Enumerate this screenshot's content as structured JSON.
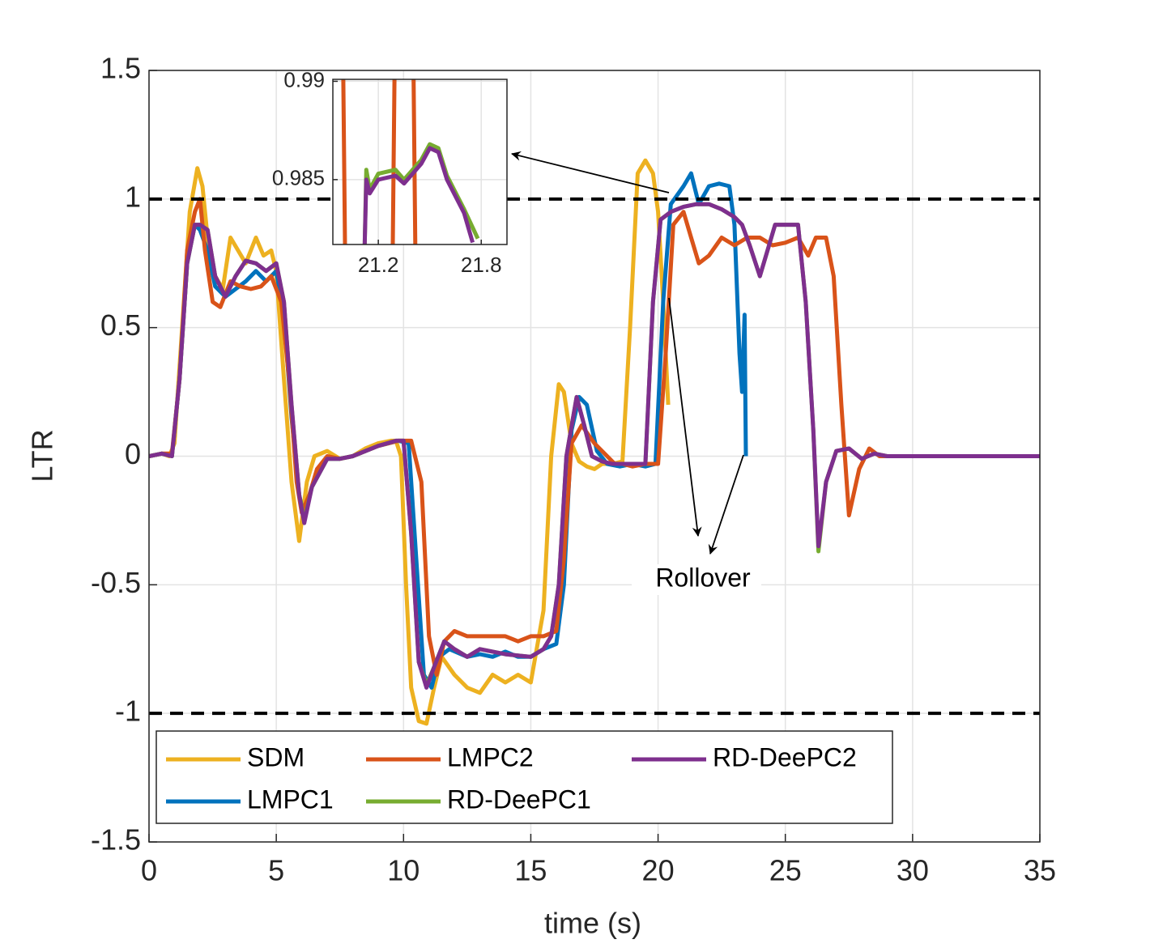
{
  "chart_data": [
    {
      "type": "line",
      "xlabel": "time (s)",
      "ylabel": "LTR",
      "xlim": [
        0,
        35
      ],
      "ylim": [
        -1.5,
        1.5
      ],
      "xticks": [
        0,
        5,
        10,
        15,
        20,
        25,
        30,
        35
      ],
      "yticks": [
        -1.5,
        -1,
        -0.5,
        0,
        0.5,
        1,
        1.5
      ],
      "grid": true,
      "reference_lines": [
        1,
        -1
      ],
      "annotations": [
        "Rollover"
      ],
      "series": [
        {
          "name": "SDM",
          "color": "#EDB120",
          "x": [
            0,
            0.5,
            0.8,
            1,
            1.3,
            1.6,
            1.9,
            2.1,
            2.3,
            2.6,
            2.9,
            3.2,
            3.5,
            3.8,
            4.2,
            4.5,
            4.8,
            5.0,
            5.3,
            5.6,
            5.9,
            6.2,
            6.5,
            7,
            7.5,
            8,
            8.5,
            9,
            9.5,
            9.7,
            9.9,
            10.1,
            10.3,
            10.6,
            10.9,
            11.2,
            11.5,
            12,
            12.5,
            13,
            13.5,
            14,
            14.5,
            15,
            15.5,
            15.8,
            16.1,
            16.3,
            16.6,
            16.9,
            17.2,
            17.5,
            17.8,
            18.2,
            18.6,
            18.9,
            19.2,
            19.5,
            19.8,
            20.0,
            20.2,
            20.4
          ],
          "values": [
            0,
            0.01,
            0,
            0.05,
            0.5,
            0.95,
            1.12,
            1.05,
            0.85,
            0.7,
            0.65,
            0.85,
            0.8,
            0.75,
            0.85,
            0.78,
            0.8,
            0.72,
            0.3,
            -0.1,
            -0.33,
            -0.1,
            0,
            0.02,
            -0.01,
            0,
            0.03,
            0.05,
            0.06,
            0.06,
            0.0,
            -0.5,
            -0.9,
            -1.03,
            -1.04,
            -0.9,
            -0.78,
            -0.85,
            -0.9,
            -0.92,
            -0.85,
            -0.88,
            -0.85,
            -0.88,
            -0.6,
            0,
            0.28,
            0.25,
            0.05,
            -0.02,
            -0.04,
            -0.05,
            -0.03,
            -0.03,
            -0.02,
            0.5,
            1.1,
            1.15,
            1.1,
            0.95,
            0.6,
            0.2
          ]
        },
        {
          "name": "LMPC1",
          "color": "#0072BD",
          "x": [
            0,
            0.5,
            0.9,
            1.2,
            1.5,
            1.8,
            2.0,
            2.3,
            2.6,
            3,
            3.4,
            3.8,
            4.2,
            4.6,
            5,
            5.3,
            5.6,
            5.9,
            6.1,
            6.4,
            7,
            7.5,
            8,
            9,
            9.8,
            10.2,
            10.5,
            10.8,
            11.1,
            11.4,
            11.8,
            12.5,
            13,
            13.5,
            14,
            14.5,
            15,
            15.5,
            16,
            16.3,
            16.6,
            16.9,
            17.2,
            17.6,
            18,
            18.5,
            19,
            19.5,
            19.9,
            20.2,
            20.5,
            21,
            21.3,
            21.6,
            22,
            22.4,
            22.8,
            23.0,
            23.2,
            23.3,
            23.4,
            23.45
          ],
          "values": [
            0,
            0.01,
            0,
            0.3,
            0.75,
            0.9,
            0.88,
            0.8,
            0.66,
            0.62,
            0.65,
            0.68,
            0.72,
            0.68,
            0.72,
            0.55,
            0.15,
            -0.15,
            -0.24,
            -0.12,
            -0.01,
            -0.01,
            0,
            0.04,
            0.06,
            0.05,
            -0.4,
            -0.85,
            -0.9,
            -0.78,
            -0.75,
            -0.78,
            -0.77,
            -0.78,
            -0.76,
            -0.78,
            -0.78,
            -0.75,
            -0.73,
            -0.5,
            0.1,
            0.23,
            0.2,
            0.02,
            -0.03,
            -0.04,
            -0.03,
            -0.04,
            -0.03,
            0.6,
            0.98,
            1.05,
            1.1,
            0.98,
            1.05,
            1.06,
            1.05,
            0.9,
            0.4,
            0.25,
            0.55,
            0.0
          ]
        },
        {
          "name": "LMPC2",
          "color": "#D95319",
          "x": [
            0,
            0.5,
            0.9,
            1.2,
            1.5,
            1.8,
            2.0,
            2.2,
            2.5,
            2.8,
            3.2,
            3.6,
            4,
            4.4,
            4.8,
            5.2,
            5.5,
            5.8,
            6.0,
            6.3,
            6.6,
            7,
            7.5,
            8,
            9,
            9.8,
            10.3,
            10.7,
            11,
            11.3,
            11.6,
            12,
            12.5,
            13,
            14,
            14.5,
            15,
            15.5,
            16,
            16.3,
            16.6,
            17,
            17.5,
            18,
            18.3,
            18.6,
            19,
            19.5,
            20,
            20.3,
            20.6,
            21,
            21.3,
            21.6,
            22,
            22.5,
            23,
            23.5,
            24,
            24.5,
            25,
            25.5,
            25.9,
            26.2,
            26.6,
            26.9,
            27.2,
            27.5,
            27.9,
            28.3,
            28.7,
            29,
            29.5,
            30,
            35
          ],
          "values": [
            0,
            0.01,
            0.01,
            0.3,
            0.8,
            0.95,
            1.0,
            0.8,
            0.6,
            0.58,
            0.68,
            0.66,
            0.65,
            0.66,
            0.7,
            0.6,
            0.3,
            -0.1,
            -0.22,
            -0.15,
            -0.05,
            0,
            -0.01,
            0,
            0.04,
            0.06,
            0.06,
            -0.1,
            -0.7,
            -0.85,
            -0.72,
            -0.68,
            -0.7,
            -0.7,
            -0.7,
            -0.72,
            -0.7,
            -0.7,
            -0.68,
            -0.4,
            0.05,
            0.12,
            0.05,
            0,
            -0.03,
            -0.03,
            -0.04,
            -0.03,
            -0.03,
            0.4,
            0.9,
            0.95,
            0.85,
            0.75,
            0.78,
            0.85,
            0.82,
            0.85,
            0.85,
            0.82,
            0.83,
            0.85,
            0.78,
            0.85,
            0.85,
            0.7,
            0.2,
            -0.23,
            -0.05,
            0.03,
            0,
            0,
            0,
            0,
            0
          ]
        },
        {
          "name": "RD-DeePC1",
          "color": "#77AC30",
          "x": [
            0,
            0.5,
            0.9,
            1.2,
            1.5,
            1.8,
            2.0,
            2.3,
            2.6,
            3,
            3.4,
            3.8,
            4.2,
            4.6,
            5,
            5.3,
            5.6,
            5.9,
            6.1,
            6.4,
            7,
            7.5,
            8,
            9,
            9.7,
            10.0,
            10.3,
            10.6,
            10.9,
            11.2,
            11.6,
            12,
            12.5,
            13,
            14,
            15,
            15.5,
            15.8,
            16.1,
            16.4,
            16.8,
            17.1,
            17.4,
            17.8,
            18.2,
            19,
            19.5,
            19.8,
            20.1,
            20.5,
            21,
            21.5,
            22,
            22.5,
            23,
            23.3,
            23.6,
            24,
            24.3,
            24.6,
            25,
            25.5,
            25.8,
            26.1,
            26.3,
            26.6,
            27,
            27.5,
            28,
            28.5,
            29,
            30,
            35
          ],
          "values": [
            0,
            0.01,
            0,
            0.3,
            0.75,
            0.9,
            0.9,
            0.88,
            0.7,
            0.62,
            0.7,
            0.76,
            0.75,
            0.72,
            0.75,
            0.6,
            0.2,
            -0.15,
            -0.25,
            -0.12,
            -0.01,
            -0.01,
            0,
            0.04,
            0.06,
            0.06,
            -0.3,
            -0.8,
            -0.89,
            -0.82,
            -0.72,
            -0.75,
            -0.78,
            -0.75,
            -0.77,
            -0.78,
            -0.75,
            -0.7,
            -0.5,
            0.0,
            0.23,
            0.12,
            0.0,
            -0.02,
            -0.03,
            -0.03,
            -0.03,
            0.6,
            0.92,
            0.95,
            0.97,
            0.98,
            0.98,
            0.96,
            0.93,
            0.9,
            0.82,
            0.7,
            0.8,
            0.9,
            0.9,
            0.9,
            0.6,
            0.1,
            -0.37,
            -0.1,
            0.02,
            0.03,
            -0.01,
            0.01,
            0,
            0,
            0
          ]
        },
        {
          "name": "RD-DeePC2",
          "color": "#7E2F8E",
          "x": [
            0,
            0.5,
            0.9,
            1.2,
            1.5,
            1.8,
            2.0,
            2.3,
            2.6,
            3,
            3.4,
            3.8,
            4.2,
            4.6,
            5,
            5.3,
            5.6,
            5.9,
            6.1,
            6.4,
            7,
            7.5,
            8,
            9,
            9.7,
            10.0,
            10.3,
            10.6,
            10.9,
            11.2,
            11.6,
            12,
            12.5,
            13,
            14,
            15,
            15.5,
            15.8,
            16.1,
            16.4,
            16.8,
            17.1,
            17.4,
            17.8,
            18.2,
            19,
            19.5,
            19.8,
            20.1,
            20.5,
            21,
            21.5,
            22,
            22.5,
            23,
            23.3,
            23.6,
            24,
            24.3,
            24.6,
            25,
            25.5,
            25.8,
            26.1,
            26.3,
            26.6,
            27,
            27.5,
            28,
            28.5,
            29,
            30,
            35
          ],
          "values": [
            0,
            0.01,
            0,
            0.3,
            0.75,
            0.9,
            0.9,
            0.88,
            0.7,
            0.62,
            0.7,
            0.76,
            0.75,
            0.72,
            0.75,
            0.6,
            0.2,
            -0.15,
            -0.26,
            -0.12,
            -0.01,
            -0.01,
            0,
            0.04,
            0.06,
            0.06,
            -0.3,
            -0.8,
            -0.9,
            -0.82,
            -0.72,
            -0.75,
            -0.78,
            -0.75,
            -0.77,
            -0.78,
            -0.75,
            -0.7,
            -0.5,
            0.0,
            0.23,
            0.12,
            0.0,
            -0.02,
            -0.03,
            -0.03,
            -0.03,
            0.6,
            0.92,
            0.95,
            0.97,
            0.98,
            0.98,
            0.96,
            0.93,
            0.9,
            0.82,
            0.7,
            0.8,
            0.9,
            0.9,
            0.9,
            0.6,
            0.1,
            -0.35,
            -0.1,
            0.02,
            0.03,
            -0.01,
            0.01,
            0,
            0,
            0
          ]
        }
      ]
    },
    {
      "type": "line",
      "xlim": [
        20.935,
        21.95
      ],
      "ylim": [
        0.9817,
        0.9901
      ],
      "xticks": [
        21.2,
        21.8
      ],
      "yticks": [
        0.985,
        0.99
      ],
      "grid": true,
      "series": [
        {
          "name": "LMPC2",
          "color": "#D95319",
          "x": [
            20.99,
            21.01,
            21.28,
            21.3,
            21.4,
            21.42
          ],
          "values": [
            0.995,
            0.978,
            0.978,
            0.995,
            0.995,
            0.978
          ]
        },
        {
          "name": "RD-DeePC1",
          "color": "#77AC30",
          "x": [
            21.12,
            21.13,
            21.15,
            21.2,
            21.3,
            21.35,
            21.45,
            21.5,
            21.55,
            21.6,
            21.7,
            21.78
          ],
          "values": [
            0.9815,
            0.9855,
            0.9845,
            0.9853,
            0.9855,
            0.985,
            0.986,
            0.9868,
            0.9866,
            0.9852,
            0.9835,
            0.982
          ]
        },
        {
          "name": "RD-DeePC2",
          "color": "#7E2F8E",
          "x": [
            21.12,
            21.13,
            21.15,
            21.2,
            21.3,
            21.35,
            21.45,
            21.5,
            21.55,
            21.6,
            21.7,
            21.75
          ],
          "values": [
            0.9815,
            0.985,
            0.9843,
            0.985,
            0.9852,
            0.9848,
            0.9858,
            0.9866,
            0.9864,
            0.985,
            0.9833,
            0.9818
          ]
        }
      ]
    }
  ]
}
